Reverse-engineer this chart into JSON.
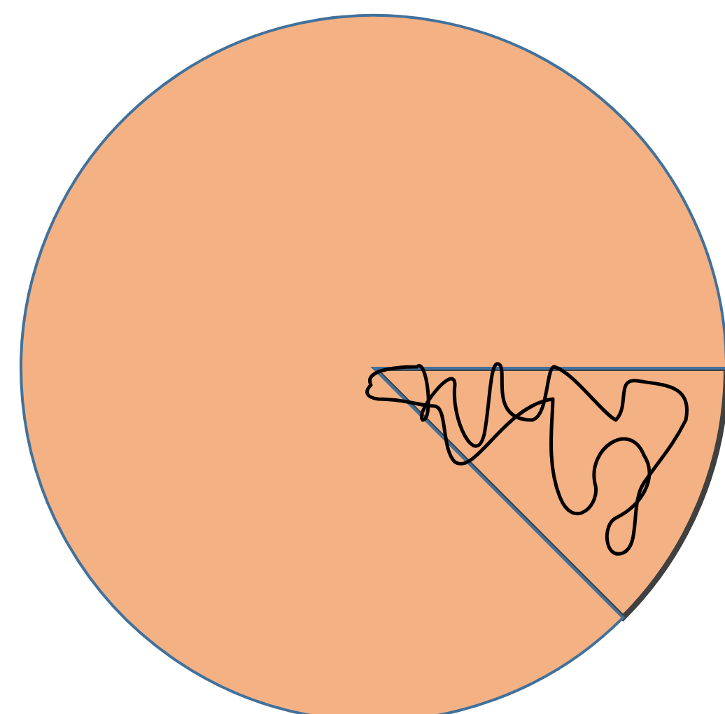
{
  "chart_data": {
    "type": "pie",
    "categories": [
      null,
      null
    ],
    "values": [
      12.5,
      87.5
    ],
    "colors": [
      "#f4b183",
      "#f4b183"
    ]
  }
}
